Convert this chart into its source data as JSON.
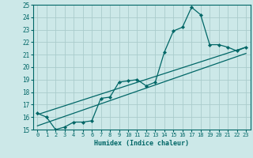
{
  "xlabel": "Humidex (Indice chaleur)",
  "bg_color": "#cce8e8",
  "grid_color": "#aacccc",
  "line_color": "#006666",
  "xlim": [
    -0.5,
    23.5
  ],
  "ylim": [
    15,
    25
  ],
  "xticks": [
    0,
    1,
    2,
    3,
    4,
    5,
    6,
    7,
    8,
    9,
    10,
    11,
    12,
    13,
    14,
    15,
    16,
    17,
    18,
    19,
    20,
    21,
    22,
    23
  ],
  "yticks": [
    15,
    16,
    17,
    18,
    19,
    20,
    21,
    22,
    23,
    24,
    25
  ],
  "curve1_x": [
    0,
    1,
    2,
    3,
    4,
    5,
    6,
    7,
    8,
    9,
    10,
    11,
    12,
    13,
    14,
    15,
    16,
    17,
    18,
    19,
    20,
    21,
    22,
    23
  ],
  "curve1_y": [
    16.3,
    16.0,
    15.0,
    15.2,
    15.6,
    15.6,
    15.7,
    17.5,
    17.6,
    18.8,
    18.9,
    19.0,
    18.5,
    18.8,
    21.2,
    22.9,
    23.2,
    24.8,
    24.2,
    21.8,
    21.8,
    21.6,
    21.3,
    21.6
  ],
  "line1_x": [
    0,
    23
  ],
  "line1_y": [
    16.2,
    21.6
  ],
  "line2_x": [
    0,
    23
  ],
  "line2_y": [
    15.3,
    21.1
  ]
}
